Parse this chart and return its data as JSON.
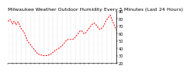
{
  "title": "Milwaukee Weather Outdoor Humidity Every 5 Minutes (Last 24 Hours)",
  "bg_color": "#ffffff",
  "plot_bg_color": "#ffffff",
  "line_color": "#ff0000",
  "grid_color": "#aaaaaa",
  "ylim": [
    20,
    90
  ],
  "yticks": [
    20,
    30,
    40,
    50,
    60,
    70,
    80,
    90
  ],
  "x_points": [
    0,
    1,
    2,
    3,
    4,
    5,
    6,
    7,
    8,
    9,
    10,
    11,
    12,
    13,
    14,
    15,
    16,
    17,
    18,
    19,
    20,
    21,
    22,
    23,
    24,
    25,
    26,
    27,
    28,
    29,
    30,
    31,
    32,
    33,
    34,
    35,
    36,
    37,
    38,
    39,
    40,
    41,
    42,
    43,
    44,
    45,
    46,
    47,
    48,
    49,
    50,
    51,
    52,
    53,
    54,
    55,
    56,
    57,
    58,
    59,
    60,
    61,
    62,
    63,
    64,
    65,
    66,
    67,
    68,
    69,
    70,
    71,
    72,
    73,
    74,
    75,
    76,
    77,
    78,
    79,
    80,
    81,
    82,
    83,
    84,
    85,
    86,
    87,
    88,
    89,
    90,
    91,
    92,
    93,
    94,
    95,
    96,
    97,
    98,
    99,
    100,
    101,
    102,
    103,
    104,
    105,
    106,
    107,
    108,
    109,
    110,
    111,
    112,
    113,
    114,
    115,
    116,
    117,
    118,
    119,
    120,
    121,
    122,
    123,
    124,
    125,
    126,
    127,
    128,
    129,
    130,
    131,
    132,
    133,
    134,
    135,
    136,
    137,
    138,
    139,
    140,
    141,
    142,
    143,
    144,
    145,
    146,
    147,
    148,
    149,
    150,
    151,
    152,
    153,
    154,
    155,
    156,
    157,
    158,
    159,
    160,
    161,
    162,
    163,
    164,
    165,
    166,
    167,
    168,
    169,
    170,
    171,
    172,
    173,
    174,
    175,
    176,
    177,
    178,
    179,
    180,
    181,
    182,
    183,
    184,
    185,
    186,
    187,
    188
  ],
  "y_points": [
    78,
    77,
    77,
    78,
    79,
    78,
    76,
    75,
    73,
    74,
    76,
    77,
    76,
    74,
    72,
    73,
    74,
    75,
    76,
    74,
    72,
    70,
    68,
    67,
    66,
    65,
    64,
    63,
    62,
    60,
    58,
    56,
    54,
    52,
    50,
    49,
    48,
    47,
    46,
    45,
    44,
    43,
    42,
    41,
    40,
    39,
    38,
    37,
    36,
    35,
    34,
    33,
    33,
    32,
    32,
    31,
    31,
    31,
    31,
    30,
    30,
    30,
    30,
    30,
    30,
    30,
    30,
    30,
    30,
    30,
    30,
    31,
    31,
    31,
    32,
    32,
    33,
    34,
    34,
    35,
    35,
    36,
    37,
    37,
    38,
    38,
    39,
    39,
    40,
    40,
    41,
    41,
    42,
    43,
    44,
    44,
    45,
    46,
    47,
    48,
    49,
    50,
    51,
    51,
    52,
    52,
    52,
    52,
    52,
    52,
    52,
    52,
    52,
    52,
    53,
    53,
    54,
    55,
    56,
    57,
    58,
    59,
    60,
    61,
    62,
    63,
    64,
    64,
    64,
    63,
    62,
    61,
    60,
    60,
    60,
    61,
    62,
    63,
    64,
    65,
    66,
    67,
    68,
    69,
    70,
    71,
    72,
    73,
    74,
    74,
    74,
    74,
    73,
    72,
    71,
    70,
    69,
    68,
    67,
    66,
    66,
    66,
    66,
    67,
    68,
    69,
    70,
    71,
    73,
    75,
    77,
    78,
    79,
    80,
    81,
    82,
    83,
    84,
    85,
    83,
    81,
    79,
    77,
    75,
    73,
    71,
    69,
    67,
    65
  ],
  "n_xticks": 25,
  "title_fontsize": 4.5,
  "tick_fontsize": 3.5,
  "line_width": 0.7
}
